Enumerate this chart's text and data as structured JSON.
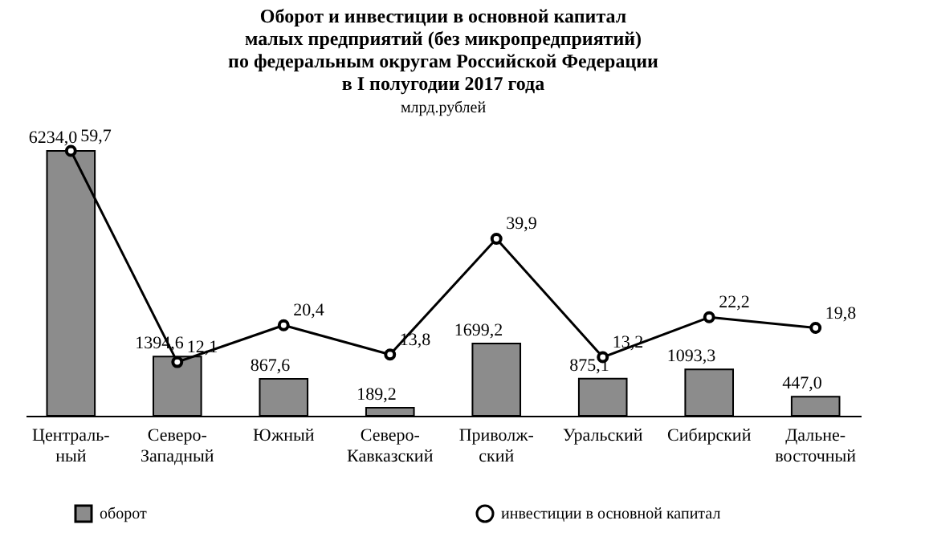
{
  "chart_data": {
    "type": "bar",
    "title": "Оборот и инвестиции в основной капитал\nмалых предприятий (без микропредприятий)\nпо федеральным округам Российской Федерации\nв I полугодии 2017 года",
    "subtitle": "млрд.рублей",
    "categories": [
      "Централь-\nный",
      "Северо-\nЗападный",
      "Южный",
      "Северо-\nКавказский",
      "Приволж-\nский",
      "Уральский",
      "Сибирский",
      "Дальне-\nвосточный"
    ],
    "series": [
      {
        "name": "оборот",
        "color": "#8c8c8c",
        "values": [
          6234.0,
          1394.6,
          867.6,
          189.2,
          1699.2,
          875.1,
          1093.3,
          447.0
        ],
        "value_labels": [
          "6234,0",
          "1394,6",
          "867,6",
          "189,2",
          "1699,2",
          "875,1",
          "1093,3",
          "447,0"
        ]
      },
      {
        "name": "инвестиции в основной капитал",
        "type": "line",
        "axis": "y2",
        "color": "#000000",
        "values": [
          59.7,
          12.1,
          20.4,
          13.8,
          39.9,
          13.2,
          22.2,
          19.8
        ],
        "value_labels": [
          "59,7",
          "12,1",
          "20,4",
          "13,8",
          "39,9",
          "13,2",
          "22,2",
          "19,8"
        ]
      }
    ],
    "tick_labels": "x",
    "legend": "bottom",
    "marker": "circle",
    "line_style": "solid",
    "grid": false
  }
}
